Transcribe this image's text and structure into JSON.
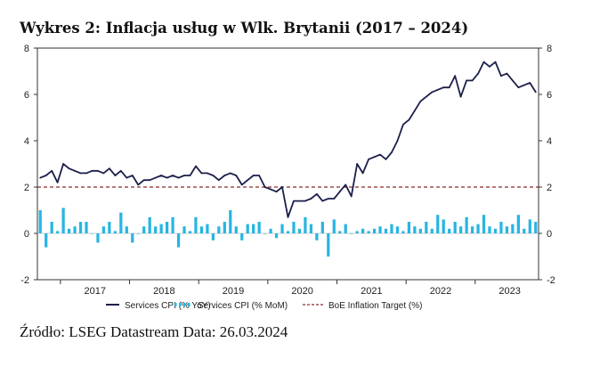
{
  "title": "Wykres 2: Inflacja usług w Wlk. Brytanii (2017 – 2024)",
  "source": "Źródło: LSEG Datastream Data: 26.03.2024",
  "chart_data": {
    "type": "line",
    "ylim": [
      -2,
      8
    ],
    "yticks": [
      -2,
      0,
      2,
      4,
      6,
      8
    ],
    "year_labels": [
      "2017",
      "2018",
      "2019",
      "2020",
      "2021",
      "2022",
      "2023"
    ],
    "x_start": "2016-09",
    "x_end": "2024-03",
    "target_value": 2,
    "colors": {
      "yoy": "#1b1f4b",
      "mom": "#27b5e3",
      "target": "#8b2a2a"
    },
    "legend": [
      "Services CPI (% YoY)",
      "Services CPI (% MoM)",
      "BoE Inflation Target (%)"
    ],
    "series": [
      {
        "name": "Services CPI (% YoY)",
        "type": "line",
        "values": [
          2.4,
          2.5,
          2.7,
          2.2,
          3.0,
          2.8,
          2.7,
          2.6,
          2.6,
          2.7,
          2.7,
          2.6,
          2.8,
          2.5,
          2.7,
          2.4,
          2.5,
          2.1,
          2.3,
          2.3,
          2.4,
          2.5,
          2.4,
          2.5,
          2.4,
          2.5,
          2.5,
          2.9,
          2.6,
          2.6,
          2.5,
          2.3,
          2.5,
          2.6,
          2.5,
          2.1,
          2.3,
          2.5,
          2.5,
          2.0,
          1.9,
          1.8,
          2.0,
          0.7,
          1.4,
          1.4,
          1.4,
          1.5,
          1.7,
          1.4,
          1.5,
          1.5,
          1.8,
          2.1,
          1.6,
          3.0,
          2.6,
          3.2,
          3.3,
          3.4,
          3.2,
          3.5,
          4.0,
          4.7,
          4.9,
          5.3,
          5.7,
          5.9,
          6.1,
          6.2,
          6.3,
          6.3,
          6.8,
          5.9,
          6.6,
          6.6,
          6.9,
          7.4,
          7.2,
          7.4,
          6.8,
          6.9,
          6.6,
          6.3,
          6.4,
          6.5,
          6.1
        ]
      },
      {
        "name": "Services CPI (% MoM)",
        "type": "bar",
        "values": [
          1.0,
          -0.6,
          0.5,
          0.1,
          1.1,
          0.2,
          0.3,
          0.5,
          0.5,
          0.0,
          -0.4,
          0.3,
          0.5,
          0.1,
          0.9,
          0.3,
          -0.4,
          0.0,
          0.3,
          0.7,
          0.3,
          0.4,
          0.5,
          0.7,
          -0.6,
          0.3,
          0.1,
          0.7,
          0.3,
          0.4,
          -0.3,
          0.3,
          0.5,
          1.0,
          0.3,
          -0.3,
          0.4,
          0.4,
          0.5,
          0.0,
          0.2,
          -0.2,
          0.4,
          0.1,
          0.5,
          0.2,
          0.7,
          0.4,
          -0.3,
          0.5,
          -1.0,
          0.6,
          0.1,
          0.4,
          0.0,
          0.1,
          0.2,
          0.1,
          0.2,
          0.3,
          0.2,
          0.4,
          0.3,
          0.1,
          0.5,
          0.3,
          0.2,
          0.5,
          0.2,
          0.8,
          0.6,
          0.2,
          0.5,
          0.3,
          0.7,
          0.3,
          0.4,
          0.8,
          0.3,
          0.2,
          0.5,
          0.3,
          0.4,
          0.8,
          0.2,
          0.6,
          0.5
        ]
      },
      {
        "name": "BoE Inflation Target (%)",
        "type": "line",
        "values": [
          2
        ]
      }
    ]
  }
}
